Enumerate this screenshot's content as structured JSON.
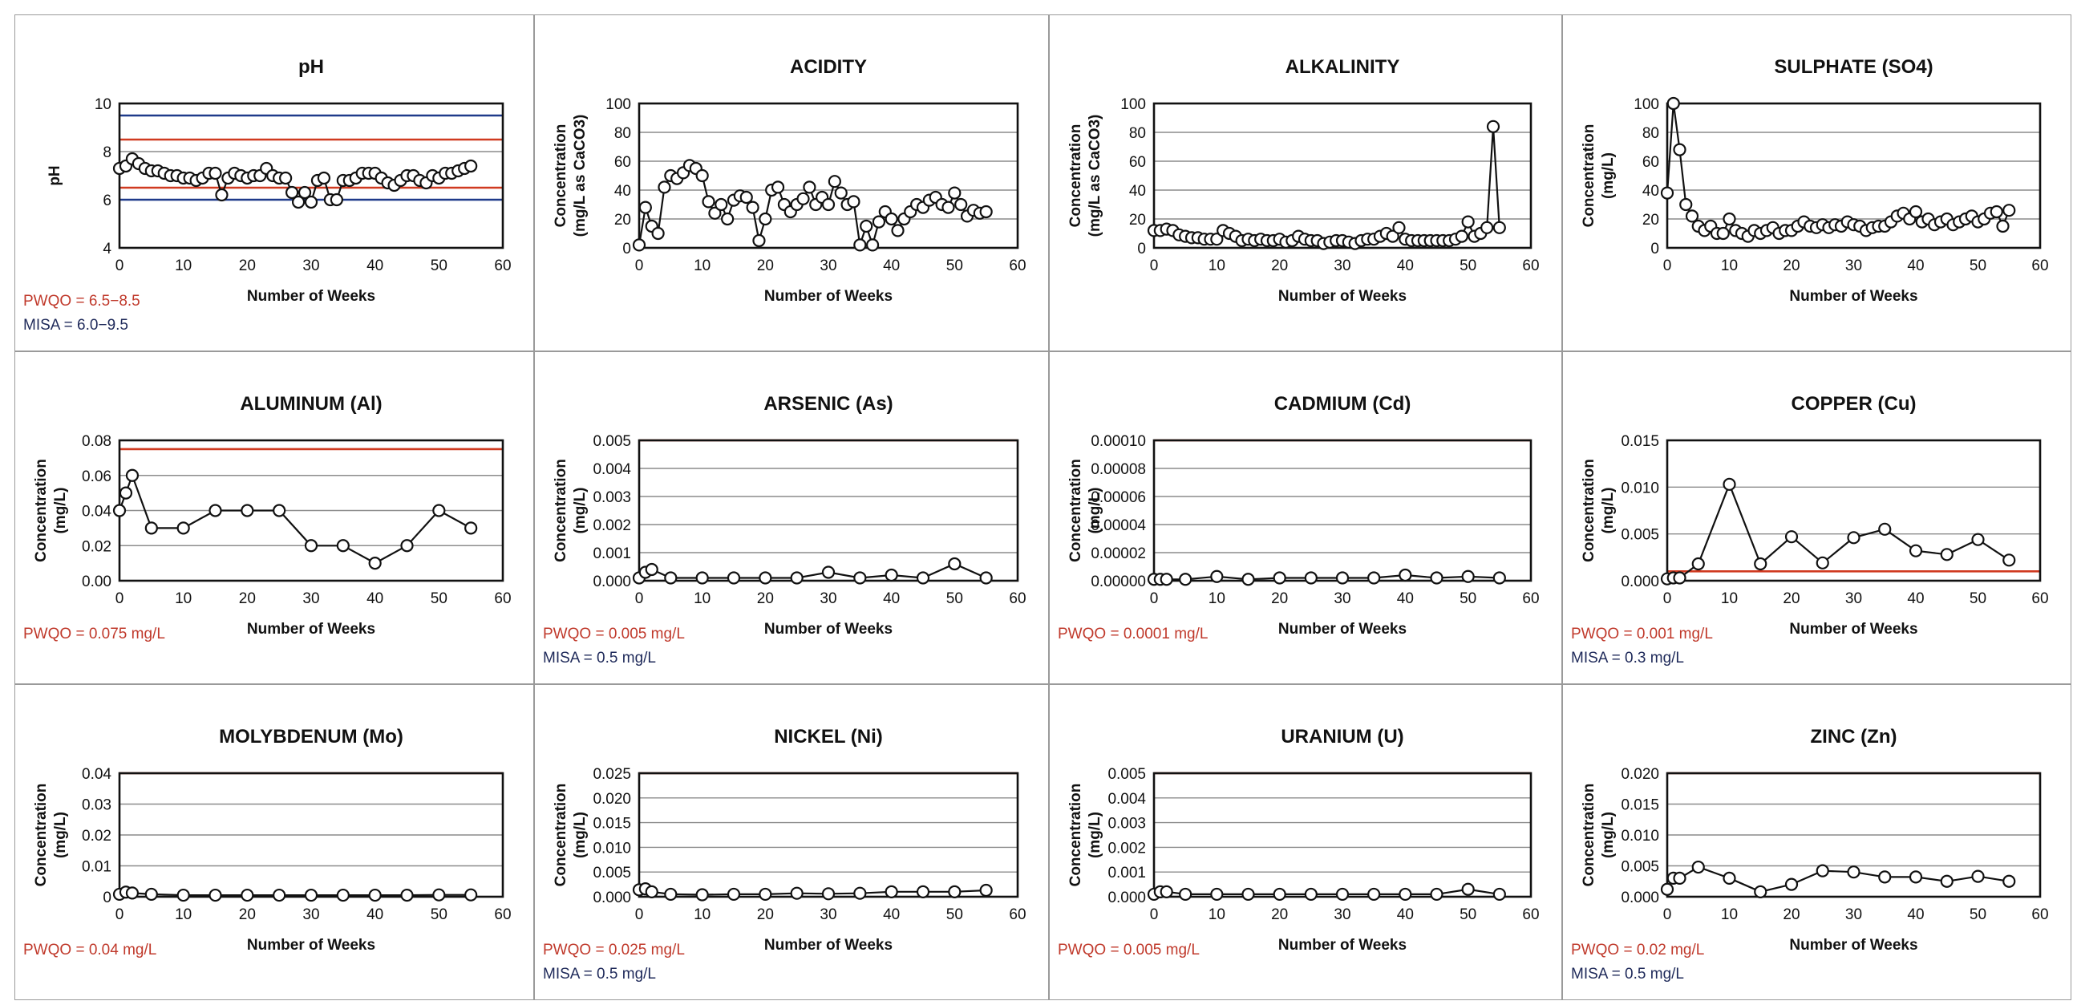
{
  "colors": {
    "pwqo": "#d03a20",
    "misa": "#1f3a8a",
    "series": "#111111",
    "marker_fill": "#ffffff",
    "grid": "#8c8c8c"
  },
  "chart_data": [
    {
      "id": "ph",
      "type": "line",
      "title": "pH",
      "xlabel": "Number of Weeks",
      "ylabel": [
        "pH"
      ],
      "xlim": [
        0,
        60
      ],
      "xticks": [
        "0",
        "10",
        "20",
        "30",
        "40",
        "50",
        "60"
      ],
      "ylim": [
        4,
        10
      ],
      "yticks": [
        "4",
        "6",
        "8",
        "10"
      ],
      "grid": true,
      "limit_lines": [
        {
          "kind": "misa",
          "value": 9.5
        },
        {
          "kind": "pwqo",
          "value": 8.5
        },
        {
          "kind": "pwqo",
          "value": 6.5
        },
        {
          "kind": "misa",
          "value": 6.0
        }
      ],
      "notes": [
        {
          "kind": "pwqo",
          "text": "PWQO = 6.5−8.5"
        },
        {
          "kind": "misa",
          "text": "MISA = 6.0−9.5"
        }
      ],
      "x": [
        0,
        1,
        2,
        3,
        4,
        5,
        6,
        7,
        8,
        9,
        10,
        11,
        12,
        13,
        14,
        15,
        16,
        17,
        18,
        19,
        20,
        21,
        22,
        23,
        24,
        25,
        26,
        27,
        28,
        29,
        30,
        31,
        32,
        33,
        34,
        35,
        36,
        37,
        38,
        39,
        40,
        41,
        42,
        43,
        44,
        45,
        46,
        47,
        48,
        49,
        50,
        51,
        52,
        53,
        54,
        55
      ],
      "values": [
        7.3,
        7.4,
        7.7,
        7.5,
        7.3,
        7.2,
        7.2,
        7.1,
        7.0,
        7.0,
        6.9,
        6.9,
        6.8,
        6.9,
        7.1,
        7.1,
        6.2,
        6.9,
        7.1,
        7.0,
        6.9,
        7.0,
        7.0,
        7.3,
        7.0,
        6.9,
        6.9,
        6.3,
        5.9,
        6.3,
        5.9,
        6.8,
        6.9,
        6.0,
        6.0,
        6.8,
        6.8,
        6.9,
        7.1,
        7.1,
        7.1,
        6.9,
        6.7,
        6.6,
        6.8,
        7.0,
        7.0,
        6.8,
        6.7,
        7.0,
        6.9,
        7.1,
        7.1,
        7.2,
        7.3,
        7.4
      ]
    },
    {
      "id": "acidity",
      "type": "line",
      "title": "ACIDITY",
      "xlabel": "Number of Weeks",
      "ylabel": [
        "Concentration",
        "(mg/L as CaCO3)"
      ],
      "xlim": [
        0,
        60
      ],
      "xticks": [
        "0",
        "10",
        "20",
        "30",
        "40",
        "50",
        "60"
      ],
      "ylim": [
        0,
        100
      ],
      "yticks": [
        "0",
        "20",
        "40",
        "60",
        "80",
        "100"
      ],
      "grid": true,
      "limit_lines": [],
      "notes": [],
      "x": [
        0,
        1,
        2,
        3,
        4,
        5,
        6,
        7,
        8,
        9,
        10,
        11,
        12,
        13,
        14,
        15,
        16,
        17,
        18,
        19,
        20,
        21,
        22,
        23,
        24,
        25,
        26,
        27,
        28,
        29,
        30,
        31,
        32,
        33,
        34,
        35,
        36,
        37,
        38,
        39,
        40,
        41,
        42,
        43,
        44,
        45,
        46,
        47,
        48,
        49,
        50,
        51,
        52,
        53,
        54,
        55
      ],
      "values": [
        2,
        28,
        15,
        10,
        42,
        50,
        48,
        52,
        57,
        55,
        50,
        32,
        24,
        30,
        20,
        33,
        36,
        35,
        28,
        5,
        20,
        40,
        42,
        30,
        25,
        30,
        34,
        42,
        30,
        35,
        30,
        46,
        38,
        30,
        32,
        2,
        15,
        2,
        18,
        25,
        20,
        12,
        20,
        25,
        30,
        28,
        33,
        35,
        30,
        28,
        38,
        30,
        22,
        26,
        24,
        25
      ]
    },
    {
      "id": "alkalinity",
      "type": "line",
      "title": "ALKALINITY",
      "xlabel": "Number of Weeks",
      "ylabel": [
        "Concentration",
        "(mg/L as CaCO3)"
      ],
      "xlim": [
        0,
        60
      ],
      "xticks": [
        "0",
        "10",
        "20",
        "30",
        "40",
        "50",
        "60"
      ],
      "ylim": [
        0,
        100
      ],
      "yticks": [
        "0",
        "20",
        "40",
        "60",
        "80",
        "100"
      ],
      "grid": true,
      "limit_lines": [],
      "notes": [],
      "x": [
        0,
        1,
        2,
        3,
        4,
        5,
        6,
        7,
        8,
        9,
        10,
        11,
        12,
        13,
        14,
        15,
        16,
        17,
        18,
        19,
        20,
        21,
        22,
        23,
        24,
        25,
        26,
        27,
        28,
        29,
        30,
        31,
        32,
        33,
        34,
        35,
        36,
        37,
        38,
        39,
        40,
        41,
        42,
        43,
        44,
        45,
        46,
        47,
        48,
        49,
        50,
        51,
        52,
        53,
        54,
        55
      ],
      "values": [
        12,
        12,
        13,
        12,
        9,
        8,
        7,
        7,
        6,
        6,
        6,
        12,
        10,
        8,
        5,
        6,
        5,
        6,
        5,
        5,
        6,
        4,
        5,
        8,
        6,
        5,
        5,
        3,
        4,
        5,
        5,
        4,
        3,
        5,
        6,
        6,
        8,
        10,
        8,
        14,
        6,
        5,
        5,
        5,
        5,
        5,
        5,
        5,
        6,
        8,
        18,
        8,
        10,
        14,
        84,
        14
      ]
    },
    {
      "id": "sulphate",
      "type": "line",
      "title": "SULPHATE (SO4)",
      "xlabel": "Number of Weeks",
      "ylabel": [
        "Concentration",
        "(mg/L)"
      ],
      "xlim": [
        0,
        60
      ],
      "xticks": [
        "0",
        "10",
        "20",
        "30",
        "40",
        "50",
        "60"
      ],
      "ylim": [
        0,
        100
      ],
      "yticks": [
        "0",
        "20",
        "40",
        "60",
        "80",
        "100"
      ],
      "grid": true,
      "limit_lines": [],
      "notes": [],
      "x": [
        0,
        1,
        2,
        3,
        4,
        5,
        6,
        7,
        8,
        9,
        10,
        11,
        12,
        13,
        14,
        15,
        16,
        17,
        18,
        19,
        20,
        21,
        22,
        23,
        24,
        25,
        26,
        27,
        28,
        29,
        30,
        31,
        32,
        33,
        34,
        35,
        36,
        37,
        38,
        39,
        40,
        41,
        42,
        43,
        44,
        45,
        46,
        47,
        48,
        49,
        50,
        51,
        52,
        53,
        54,
        55
      ],
      "values": [
        38,
        100,
        68,
        30,
        22,
        15,
        12,
        15,
        10,
        10,
        20,
        12,
        10,
        8,
        12,
        10,
        12,
        14,
        10,
        12,
        12,
        15,
        18,
        15,
        14,
        16,
        14,
        16,
        15,
        18,
        16,
        15,
        12,
        14,
        15,
        15,
        18,
        22,
        24,
        20,
        25,
        18,
        20,
        16,
        18,
        20,
        16,
        18,
        20,
        22,
        18,
        20,
        24,
        25,
        15,
        26
      ]
    },
    {
      "id": "aluminum",
      "type": "line",
      "title": "ALUMINUM (Al)",
      "xlabel": "Number of Weeks",
      "ylabel": [
        "Concentration",
        "(mg/L)"
      ],
      "xlim": [
        0,
        60
      ],
      "xticks": [
        "0",
        "10",
        "20",
        "30",
        "40",
        "50",
        "60"
      ],
      "ylim": [
        0,
        0.08
      ],
      "yticks": [
        "0.00",
        "0.02",
        "0.04",
        "0.06",
        "0.08"
      ],
      "grid": true,
      "limit_lines": [
        {
          "kind": "pwqo",
          "value": 0.075
        }
      ],
      "notes": [
        {
          "kind": "pwqo",
          "text": "PWQO = 0.075 mg/L"
        }
      ],
      "x": [
        0,
        1,
        2,
        5,
        10,
        15,
        20,
        25,
        30,
        35,
        40,
        45,
        50,
        55
      ],
      "values": [
        0.04,
        0.05,
        0.06,
        0.03,
        0.03,
        0.04,
        0.04,
        0.04,
        0.02,
        0.02,
        0.01,
        0.02,
        0.04,
        0.03
      ]
    },
    {
      "id": "arsenic",
      "type": "line",
      "title": "ARSENIC (As)",
      "xlabel": "Number of Weeks",
      "ylabel": [
        "Concentration",
        "(mg/L)"
      ],
      "xlim": [
        0,
        60
      ],
      "xticks": [
        "0",
        "10",
        "20",
        "30",
        "40",
        "50",
        "60"
      ],
      "ylim": [
        0,
        0.005
      ],
      "yticks": [
        "0.000",
        "0.001",
        "0.002",
        "0.003",
        "0.004",
        "0.005"
      ],
      "grid": true,
      "limit_lines": [
        {
          "kind": "pwqo",
          "value": 0.005
        }
      ],
      "notes": [
        {
          "kind": "pwqo",
          "text": "PWQO = 0.005 mg/L"
        },
        {
          "kind": "misa",
          "text": "MISA = 0.5 mg/L"
        }
      ],
      "x": [
        0,
        1,
        2,
        5,
        10,
        15,
        20,
        25,
        30,
        35,
        40,
        45,
        50,
        55
      ],
      "values": [
        0.0001,
        0.0003,
        0.0004,
        0.0001,
        0.0001,
        0.0001,
        0.0001,
        0.0001,
        0.0003,
        0.0001,
        0.0002,
        0.0001,
        0.0006,
        0.0001
      ]
    },
    {
      "id": "cadmium",
      "type": "line",
      "title": "CADMIUM (Cd)",
      "xlabel": "Number of Weeks",
      "ylabel": [
        "Concentration",
        "(mg/L)"
      ],
      "xlim": [
        0,
        60
      ],
      "xticks": [
        "0",
        "10",
        "20",
        "30",
        "40",
        "50",
        "60"
      ],
      "ylim": [
        0,
        0.0001
      ],
      "yticks": [
        "0.00000",
        "0.00002",
        "0.00004",
        "0.00006",
        "0.00008",
        "0.00010"
      ],
      "grid": true,
      "limit_lines": [
        {
          "kind": "pwqo",
          "value": 0.0001
        }
      ],
      "notes": [
        {
          "kind": "pwqo",
          "text": "PWQO = 0.0001 mg/L"
        }
      ],
      "x": [
        0,
        1,
        2,
        5,
        10,
        15,
        20,
        25,
        30,
        35,
        40,
        45,
        50,
        55
      ],
      "values": [
        1e-06,
        1e-06,
        1e-06,
        1e-06,
        3e-06,
        1e-06,
        2e-06,
        2e-06,
        2e-06,
        2e-06,
        4e-06,
        2e-06,
        3e-06,
        2e-06
      ]
    },
    {
      "id": "copper",
      "type": "line",
      "title": "COPPER (Cu)",
      "xlabel": "Number of Weeks",
      "ylabel": [
        "Concentration",
        "(mg/L)"
      ],
      "xlim": [
        0,
        60
      ],
      "xticks": [
        "0",
        "10",
        "20",
        "30",
        "40",
        "50",
        "60"
      ],
      "ylim": [
        0,
        0.015
      ],
      "yticks": [
        "0.000",
        "0.005",
        "0.010",
        "0.015"
      ],
      "grid": true,
      "limit_lines": [
        {
          "kind": "pwqo",
          "value": 0.001
        }
      ],
      "notes": [
        {
          "kind": "pwqo",
          "text": "PWQO = 0.001 mg/L"
        },
        {
          "kind": "misa",
          "text": "MISA = 0.3 mg/L"
        }
      ],
      "x": [
        0,
        1,
        2,
        5,
        10,
        15,
        20,
        25,
        30,
        35,
        40,
        45,
        50,
        55
      ],
      "values": [
        0.0002,
        0.0003,
        0.0003,
        0.0018,
        0.0103,
        0.0018,
        0.0047,
        0.0019,
        0.0046,
        0.0055,
        0.0032,
        0.0028,
        0.0044,
        0.0022
      ]
    },
    {
      "id": "molybdenum",
      "type": "line",
      "title": "MOLYBDENUM (Mo)",
      "xlabel": "Number of Weeks",
      "ylabel": [
        "Concentration",
        "(mg/L)"
      ],
      "xlim": [
        0,
        60
      ],
      "xticks": [
        "0",
        "10",
        "20",
        "30",
        "40",
        "50",
        "60"
      ],
      "ylim": [
        0,
        0.04
      ],
      "yticks": [
        "0",
        "0.01",
        "0.02",
        "0.03",
        "0.04"
      ],
      "grid": true,
      "limit_lines": [
        {
          "kind": "pwqo",
          "value": 0.04
        }
      ],
      "notes": [
        {
          "kind": "pwqo",
          "text": "PWQO = 0.04 mg/L"
        }
      ],
      "x": [
        0,
        1,
        2,
        5,
        10,
        15,
        20,
        25,
        30,
        35,
        40,
        45,
        50,
        55
      ],
      "values": [
        0.0008,
        0.0015,
        0.0012,
        0.0008,
        0.0005,
        0.0005,
        0.0005,
        0.0005,
        0.0005,
        0.0005,
        0.0005,
        0.0005,
        0.0006,
        0.0006
      ]
    },
    {
      "id": "nickel",
      "type": "line",
      "title": "NICKEL (Ni)",
      "xlabel": "Number of Weeks",
      "ylabel": [
        "Concentration",
        "(mg/L)"
      ],
      "xlim": [
        0,
        60
      ],
      "xticks": [
        "0",
        "10",
        "20",
        "30",
        "40",
        "50",
        "60"
      ],
      "ylim": [
        0,
        0.025
      ],
      "yticks": [
        "0.000",
        "0.005",
        "0.010",
        "0.015",
        "0.020",
        "0.025"
      ],
      "grid": true,
      "limit_lines": [
        {
          "kind": "pwqo",
          "value": 0.025
        }
      ],
      "notes": [
        {
          "kind": "pwqo",
          "text": "PWQO = 0.025 mg/L"
        },
        {
          "kind": "misa",
          "text": "MISA = 0.5 mg/L"
        }
      ],
      "x": [
        0,
        1,
        2,
        5,
        10,
        15,
        20,
        25,
        30,
        35,
        40,
        45,
        50,
        55
      ],
      "values": [
        0.0014,
        0.0016,
        0.001,
        0.0005,
        0.0004,
        0.0005,
        0.0005,
        0.0007,
        0.0006,
        0.0007,
        0.001,
        0.001,
        0.001,
        0.0013
      ]
    },
    {
      "id": "uranium",
      "type": "line",
      "title": "URANIUM (U)",
      "xlabel": "Number of Weeks",
      "ylabel": [
        "Concentration",
        "(mg/L)"
      ],
      "xlim": [
        0,
        60
      ],
      "xticks": [
        "0",
        "10",
        "20",
        "30",
        "40",
        "50",
        "60"
      ],
      "ylim": [
        0,
        0.005
      ],
      "yticks": [
        "0.000",
        "0.001",
        "0.002",
        "0.003",
        "0.004",
        "0.005"
      ],
      "grid": true,
      "limit_lines": [
        {
          "kind": "pwqo",
          "value": 0.005
        }
      ],
      "notes": [
        {
          "kind": "pwqo",
          "text": "PWQO = 0.005 mg/L"
        }
      ],
      "x": [
        0,
        1,
        2,
        5,
        10,
        15,
        20,
        25,
        30,
        35,
        40,
        45,
        50,
        55
      ],
      "values": [
        0.0001,
        0.0002,
        0.0002,
        0.0001,
        0.0001,
        0.0001,
        0.0001,
        0.0001,
        0.0001,
        0.0001,
        0.0001,
        0.0001,
        0.0003,
        0.0001
      ]
    },
    {
      "id": "zinc",
      "type": "line",
      "title": "ZINC (Zn)",
      "xlabel": "Number of Weeks",
      "ylabel": [
        "Concentration",
        "(mg/L)"
      ],
      "xlim": [
        0,
        60
      ],
      "xticks": [
        "0",
        "10",
        "20",
        "30",
        "40",
        "50",
        "60"
      ],
      "ylim": [
        0,
        0.02
      ],
      "yticks": [
        "0.000",
        "0.005",
        "0.010",
        "0.015",
        "0.020"
      ],
      "grid": true,
      "limit_lines": [
        {
          "kind": "pwqo",
          "value": 0.02
        }
      ],
      "notes": [
        {
          "kind": "pwqo",
          "text": "PWQO = 0.02 mg/L"
        },
        {
          "kind": "misa",
          "text": "MISA = 0.5 mg/L"
        }
      ],
      "x": [
        0,
        1,
        2,
        5,
        10,
        15,
        20,
        25,
        30,
        35,
        40,
        45,
        50,
        55
      ],
      "values": [
        0.0012,
        0.003,
        0.003,
        0.0048,
        0.003,
        0.0008,
        0.002,
        0.0042,
        0.004,
        0.0032,
        0.0032,
        0.0025,
        0.0033,
        0.0025
      ]
    }
  ]
}
